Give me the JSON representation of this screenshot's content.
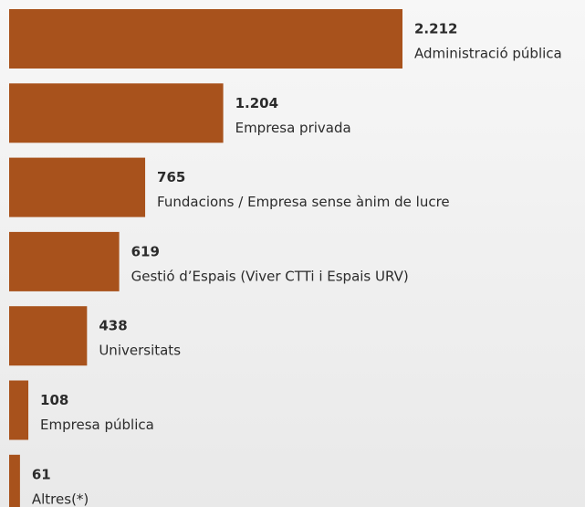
{
  "chart_data": {
    "type": "hbar",
    "categories": [
      "Administració pública",
      "Empresa privada",
      "Fundacions / Empresa sense ànim de lucre",
      "Gestió d’Espais (Viver CTTi i Espais URV)",
      "Universitats",
      "Empresa pública",
      "Altres(*)"
    ],
    "values": [
      2212,
      1204,
      765,
      619,
      438,
      108,
      61
    ],
    "value_labels": [
      "2.212",
      "1.204",
      "765",
      "619",
      "438",
      "108",
      "61"
    ],
    "color": "#a8521c"
  }
}
